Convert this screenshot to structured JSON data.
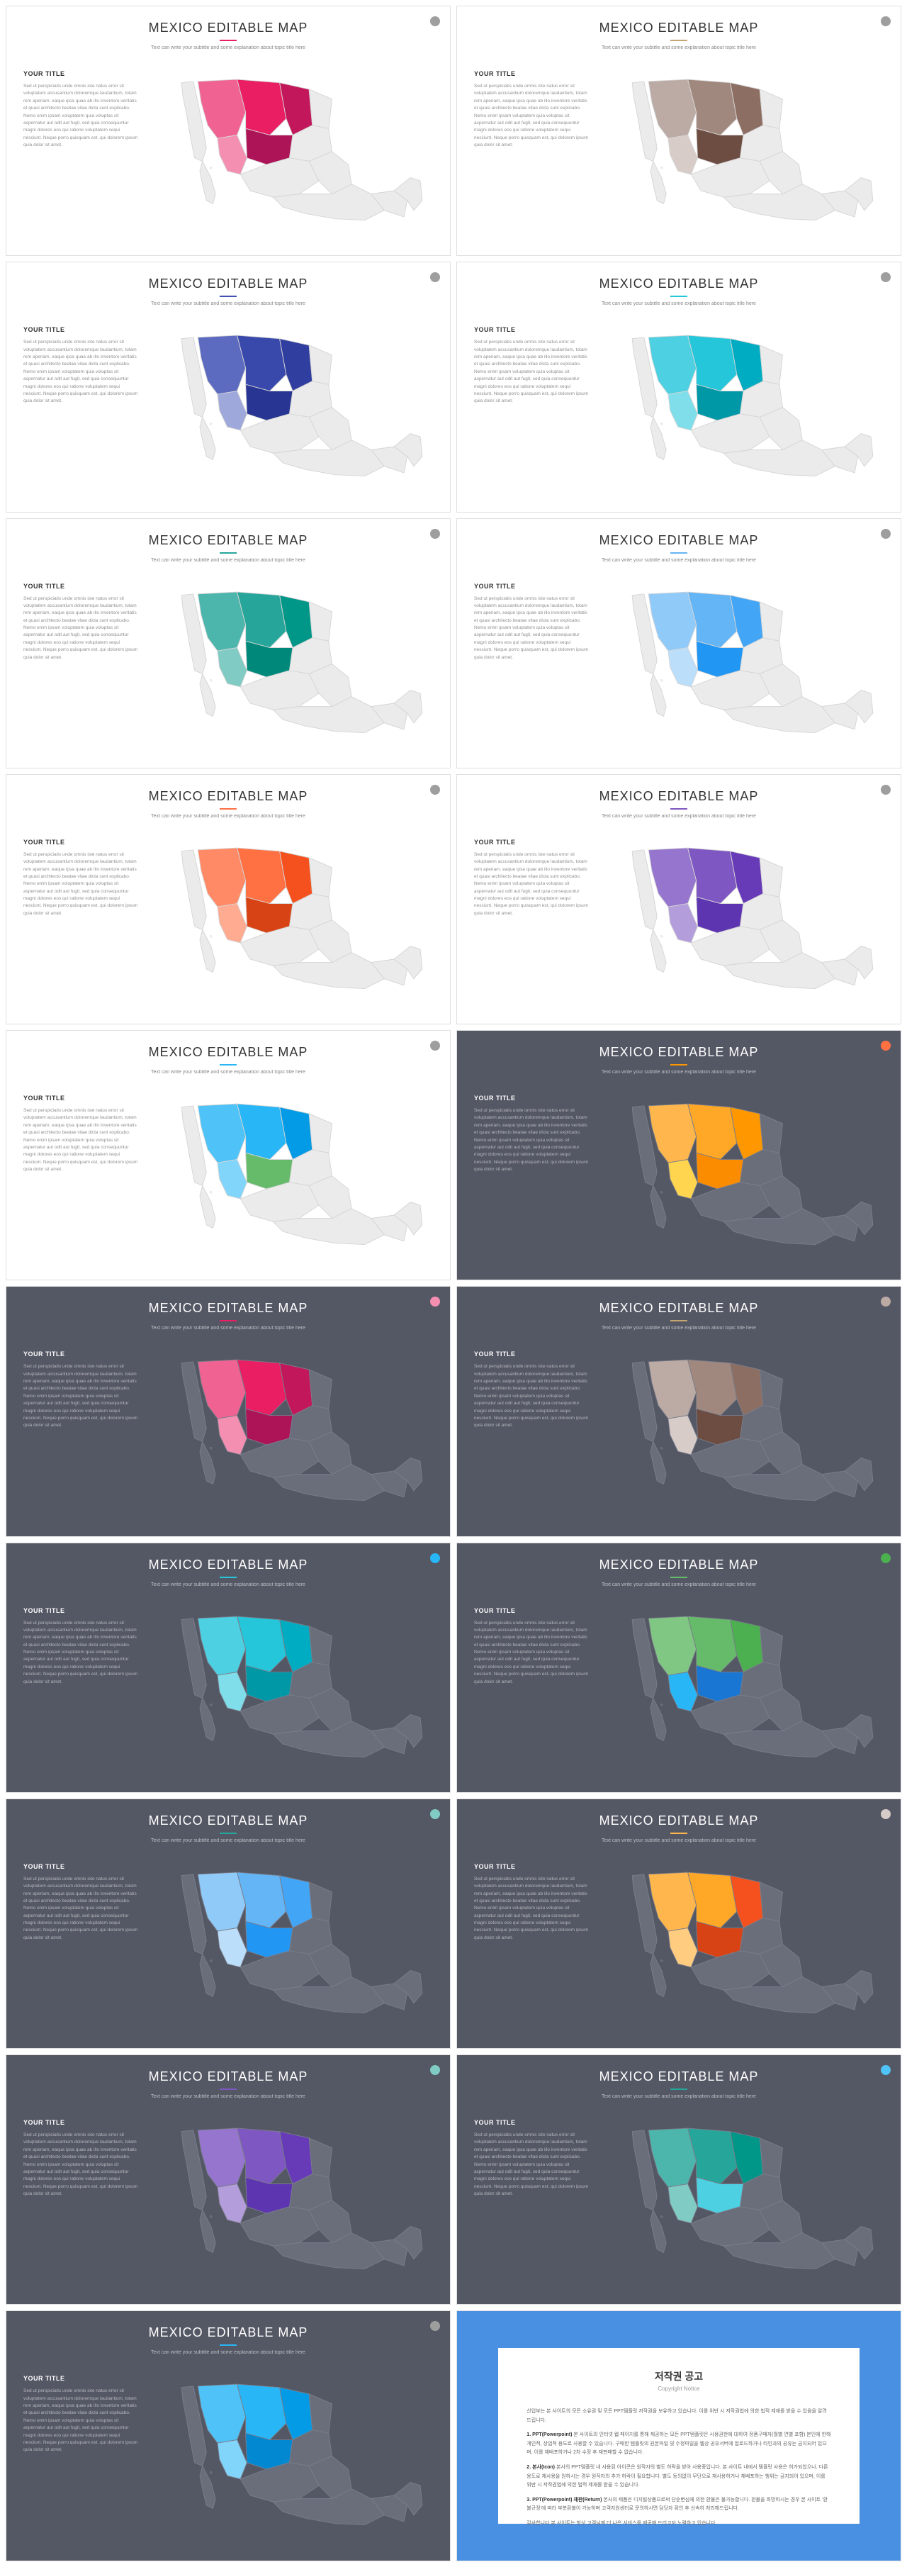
{
  "common": {
    "slideTitle": "MEXICO EDITABLE MAP",
    "subtitle": "Text can write your subtitle and some explanation about topic title here",
    "yourTitle": "YOUR TITLE",
    "bodyText": "Sed ut perspiciatis unde omnis iste natus error sit voluptatem accusantium doloremque laudantium, totam rem aperiam, eaque ipsa quae ab illo inventore veritatis et quasi architecto beatae vitae dicta sunt explicabo. Nemo enim ipsam voluptatem quia voluptas sit aspernatur aut odit aut fugit, sed quia consequuntur magni dolores eos qui ratione voluptatem sequi nesciunt. Neque porro quisquam est, qui dolorem ipsum quia dolor sit amet."
  },
  "mapBase": {
    "lightFill": "#ebebeb",
    "lightStroke": "#d5d5d5",
    "darkFill": "#6a6d7a",
    "darkStroke": "#7a7d8a"
  },
  "slides": [
    {
      "theme": "light",
      "underline": "#e91e63",
      "dot": "#9e9e9e",
      "regions": {
        "r1": "#f06292",
        "r2": "#e91e63",
        "r3": "#f48fb1",
        "r4": "#c2185b",
        "r5": "#ad1457"
      }
    },
    {
      "theme": "light",
      "underline": "#c5a572",
      "dot": "#9e9e9e",
      "regions": {
        "r1": "#bcaaa4",
        "r2": "#a1887f",
        "r3": "#d7ccc8",
        "r4": "#8d6e63",
        "r5": "#6d4c41"
      }
    },
    {
      "theme": "light",
      "underline": "#3f51b5",
      "dot": "#9e9e9e",
      "regions": {
        "r1": "#5c6bc0",
        "r2": "#3949ab",
        "r3": "#9fa8da",
        "r4": "#303f9f",
        "r5": "#283593"
      }
    },
    {
      "theme": "light",
      "underline": "#26c6da",
      "dot": "#9e9e9e",
      "regions": {
        "r1": "#4dd0e1",
        "r2": "#26c6da",
        "r3": "#80deea",
        "r4": "#00acc1",
        "r5": "#0097a7"
      }
    },
    {
      "theme": "light",
      "underline": "#26a69a",
      "dot": "#9e9e9e",
      "regions": {
        "r1": "#4db6ac",
        "r2": "#26a69a",
        "r3": "#80cbc4",
        "r4": "#009688",
        "r5": "#00897b"
      }
    },
    {
      "theme": "light",
      "underline": "#64b5f6",
      "dot": "#9e9e9e",
      "regions": {
        "r1": "#90caf9",
        "r2": "#64b5f6",
        "r3": "#bbdefb",
        "r4": "#42a5f5",
        "r5": "#2196f3"
      }
    },
    {
      "theme": "light",
      "underline": "#ff7043",
      "dot": "#9e9e9e",
      "regions": {
        "r1": "#ff8a65",
        "r2": "#ff7043",
        "r3": "#ffab91",
        "r4": "#f4511e",
        "r5": "#d84315"
      }
    },
    {
      "theme": "light",
      "underline": "#7e57c2",
      "dot": "#9e9e9e",
      "regions": {
        "r1": "#9575cd",
        "r2": "#7e57c2",
        "r3": "#b39ddb",
        "r4": "#673ab7",
        "r5": "#5e35b1"
      }
    },
    {
      "theme": "light",
      "underline": "#29b6f6",
      "dot": "#9e9e9e",
      "regions": {
        "r1": "#4fc3f7",
        "r2": "#29b6f6",
        "r3": "#81d4fa",
        "r4": "#039be5",
        "r5": "#66bb6a"
      }
    },
    {
      "theme": "dark",
      "underline": "#ff9800",
      "dot": "#ff7043",
      "regions": {
        "r1": "#ffb74d",
        "r2": "#ffa726",
        "r3": "#ffd54f",
        "r4": "#ff9800",
        "r5": "#fb8c00"
      }
    },
    {
      "theme": "dark",
      "underline": "#e91e63",
      "dot": "#f48fb1",
      "regions": {
        "r1": "#f06292",
        "r2": "#e91e63",
        "r3": "#f48fb1",
        "r4": "#c2185b",
        "r5": "#ad1457"
      }
    },
    {
      "theme": "dark",
      "underline": "#c5a572",
      "dot": "#bcaaa4",
      "regions": {
        "r1": "#bcaaa4",
        "r2": "#a1887f",
        "r3": "#d7ccc8",
        "r4": "#8d6e63",
        "r5": "#6d4c41"
      }
    },
    {
      "theme": "dark",
      "underline": "#26c6da",
      "dot": "#29b6f6",
      "regions": {
        "r1": "#4dd0e1",
        "r2": "#26c6da",
        "r3": "#80deea",
        "r4": "#00acc1",
        "r5": "#0097a7"
      }
    },
    {
      "theme": "dark",
      "underline": "#66bb6a",
      "dot": "#4caf50",
      "regions": {
        "r1": "#81c784",
        "r2": "#66bb6a",
        "r3": "#29b6f6",
        "r4": "#4caf50",
        "r5": "#1976d2"
      }
    },
    {
      "theme": "dark",
      "underline": "#26a69a",
      "dot": "#80cbc4",
      "regions": {
        "r1": "#90caf9",
        "r2": "#64b5f6",
        "r3": "#bbdefb",
        "r4": "#42a5f5",
        "r5": "#2196f3"
      }
    },
    {
      "theme": "dark",
      "underline": "#ffb74d",
      "dot": "#d7ccc8",
      "regions": {
        "r1": "#ffb74d",
        "r2": "#ffa726",
        "r3": "#ffcc80",
        "r4": "#f4511e",
        "r5": "#d84315"
      }
    },
    {
      "theme": "dark",
      "underline": "#7e57c2",
      "dot": "#80cbc4",
      "regions": {
        "r1": "#9575cd",
        "r2": "#7e57c2",
        "r3": "#b39ddb",
        "r4": "#673ab7",
        "r5": "#5e35b1"
      }
    },
    {
      "theme": "dark",
      "underline": "#26a69a",
      "dot": "#4fc3f7",
      "regions": {
        "r1": "#4db6ac",
        "r2": "#26a69a",
        "r3": "#80cbc4",
        "r4": "#009688",
        "r5": "#4dd0e1"
      }
    },
    {
      "theme": "dark",
      "underline": "#29b6f6",
      "dot": "#9e9e9e",
      "regions": {
        "r1": "#4fc3f7",
        "r2": "#29b6f6",
        "r3": "#81d4fa",
        "r4": "#039be5",
        "r5": "#0288d1"
      }
    }
  ],
  "copyright": {
    "title": "저작권 공고",
    "subtitle": "Copyright Notice",
    "intro": "산업부는 본 사이트의 모든 소유권 및 모든 PPT템플릿 저작권을 보유하고 있습니다. 이를 위반 시 저작권법에 의한 법적 제재를 받을 수 있음을 알려드립니다.",
    "items": [
      {
        "label": "1. PPT(Powerpoint)",
        "text": "본 사이트의 인터넷 웹 페이지를 통해 제공하는 모든 PPT템플릿은 사용권한에 대하여 정품구매자(월별 연별 포함) 본인에 한해 개인적, 상업적 용도로 사용할 수 있습니다. 구매한 템플릿의 원본파일 및 수정파일을 웹상 공유서버에 업로드하거나 타인과의 공유는 금지되어 있으며, 이를 재배포하거나 2차 수정 후 재판매할 수 없습니다."
      },
      {
        "label": "2. 본사(Icon)",
        "text": "본사의 PPT템플릿 내 사용된 아이콘은 원작자의 별도 허락을 받아 사용중입니다. 본 사이트 내에서 템플릿 사용은 허가되었으나, 다른 용도로 재사용을 원하시는 경우 원작자의 추가 허락이 필요합니다. 별도 동의없이 무단으로 재사용하거나 재배포하는 행위는 금지되어 있으며, 이를 위반 시 저작권법에 의한 법적 제재를 받을 수 있습니다."
      },
      {
        "label": "3. PPT(Powerpoint) 재판(Return)",
        "text": "본사의 제품은 디지털상품으로써 단순변심에 의한 환불은 불가능합니다. 환불을 희망하시는 경우 본 사이트 '환불규정'에 따라 부분환불이 가능하며 고객지원센터로 문의하시면 담당자 확인 후 신속히 처리해드립니다."
      }
    ],
    "footer": "감사합니다 본 사이트는 항상 고객님께 더 나은 서비스를 제공해 드리고자 노력하고 있습니다."
  }
}
